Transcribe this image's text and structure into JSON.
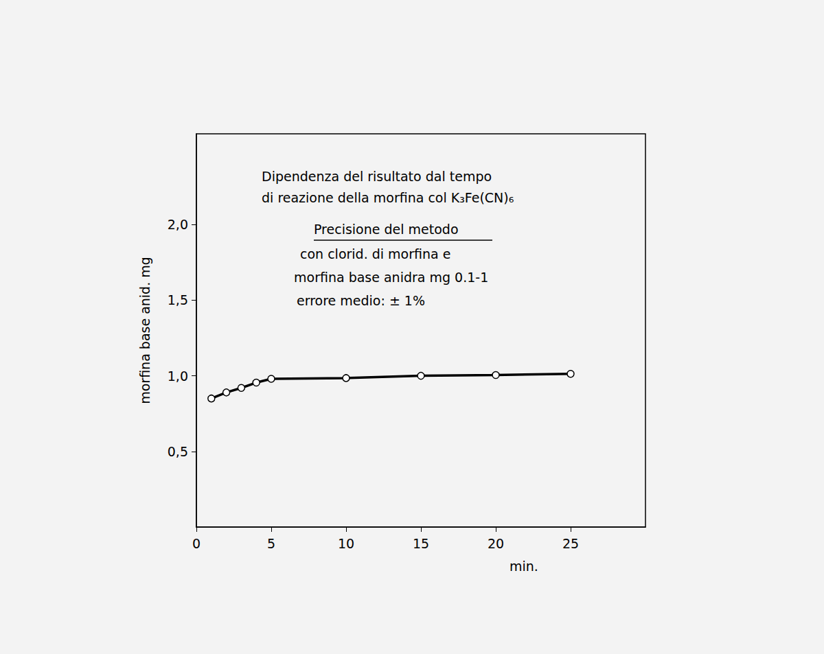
{
  "chart_data": {
    "type": "line",
    "title": "Dipendenza del risultato dal tempo\ndi reazione della morfina col K₃Fe(CN)₆",
    "subtitle": "Precisione del metodo",
    "annotations": [
      "con clorid. di morfina e",
      "morfina base anidra mg 0.1-1",
      "errore medio: ± 1%"
    ],
    "x_label": "min.",
    "y_label": "morfina base anid. mg",
    "x": [
      1,
      2,
      3,
      4,
      5,
      10,
      15,
      20,
      25
    ],
    "values": [
      0.85,
      0.89,
      0.92,
      0.955,
      0.98,
      0.985,
      1.0,
      1.005,
      1.013
    ],
    "color": "#000000",
    "marker": "circle",
    "xlim": [
      0,
      30
    ],
    "xticks": [
      0,
      5,
      10,
      15,
      20,
      25
    ],
    "ylim": [
      0,
      2.6
    ],
    "yticks": [
      {
        "value": 0.5,
        "label": "0,5"
      },
      {
        "value": 1.0,
        "label": "1,0"
      },
      {
        "value": 1.5,
        "label": "1,5"
      },
      {
        "value": 2.0,
        "label": "2,0"
      }
    ],
    "grid": false
  }
}
